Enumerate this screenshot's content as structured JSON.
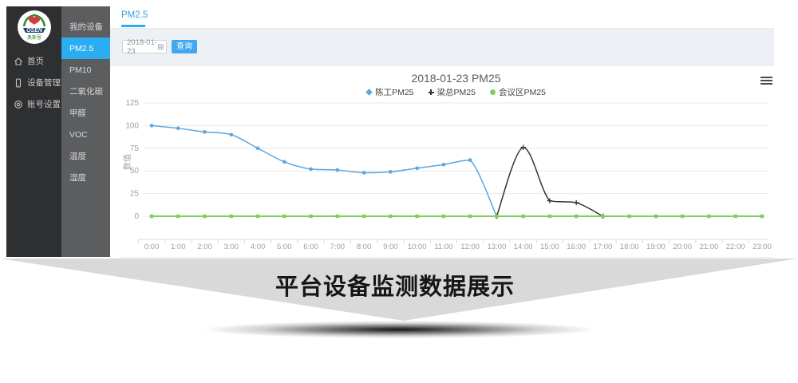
{
  "page": {
    "caption": "平台设备监测数据展示"
  },
  "logo": {
    "text": "OSEN",
    "subtext": "奥斯恩"
  },
  "sidebar_primary": {
    "items": [
      {
        "icon": "home-icon",
        "label": "首页"
      },
      {
        "icon": "device-icon",
        "label": "设备管理"
      },
      {
        "icon": "account-icon",
        "label": "账号设置"
      }
    ]
  },
  "sidebar_secondary": {
    "items": [
      {
        "label": "我的设备",
        "active": false
      },
      {
        "label": "PM2.5",
        "active": true
      },
      {
        "label": "PM10",
        "active": false
      },
      {
        "label": "二氧化碳",
        "active": false
      },
      {
        "label": "甲醛",
        "active": false
      },
      {
        "label": "VOC",
        "active": false
      },
      {
        "label": "温度",
        "active": false
      },
      {
        "label": "湿度",
        "active": false
      }
    ]
  },
  "tabs": {
    "active_tab": "PM2.5"
  },
  "filter": {
    "date_value": "2018-01-23",
    "query_label": "查询"
  },
  "colors": {
    "accent_blue": "#2badf1",
    "button_blue": "#41a7f1",
    "banner_gray": "#d9d9d9",
    "grid_line": "#e9e9e9",
    "axis_text": "#9aa0a6"
  },
  "chart_data": {
    "type": "line",
    "title": "2018-01-23 PM25",
    "ylabel": "数值",
    "xlabel": "",
    "ylim": [
      0,
      125
    ],
    "yticks": [
      0,
      25,
      50,
      75,
      100,
      125
    ],
    "grid": true,
    "smooth": true,
    "legend_position": "top-center",
    "categories": [
      "0:00",
      "1:00",
      "2:00",
      "3:00",
      "4:00",
      "5:00",
      "6:00",
      "7:00",
      "8:00",
      "9:00",
      "10:00",
      "11:00",
      "12:00",
      "13:00",
      "14:00",
      "15:00",
      "16:00",
      "17:00",
      "18:00",
      "19:00",
      "20:00",
      "21:00",
      "22:00",
      "23:00"
    ],
    "series": [
      {
        "name": "陈工PM25",
        "color": "#5aa7e0",
        "marker": "circle",
        "start": 0,
        "values": [
          100,
          97,
          93,
          90,
          75,
          60,
          52,
          51,
          48,
          49,
          53,
          57,
          62,
          0
        ]
      },
      {
        "name": "梁总PM25",
        "color": "#333333",
        "marker": "plus",
        "start": 13,
        "values": [
          0,
          76,
          17,
          15,
          0
        ]
      },
      {
        "name": "会议区PM25",
        "color": "#7ed05b",
        "marker": "square",
        "start": 0,
        "values": [
          0,
          0,
          0,
          0,
          0,
          0,
          0,
          0,
          0,
          0,
          0,
          0,
          0,
          0,
          0,
          0,
          0,
          0,
          0,
          0,
          0,
          0,
          0,
          0
        ]
      }
    ]
  }
}
